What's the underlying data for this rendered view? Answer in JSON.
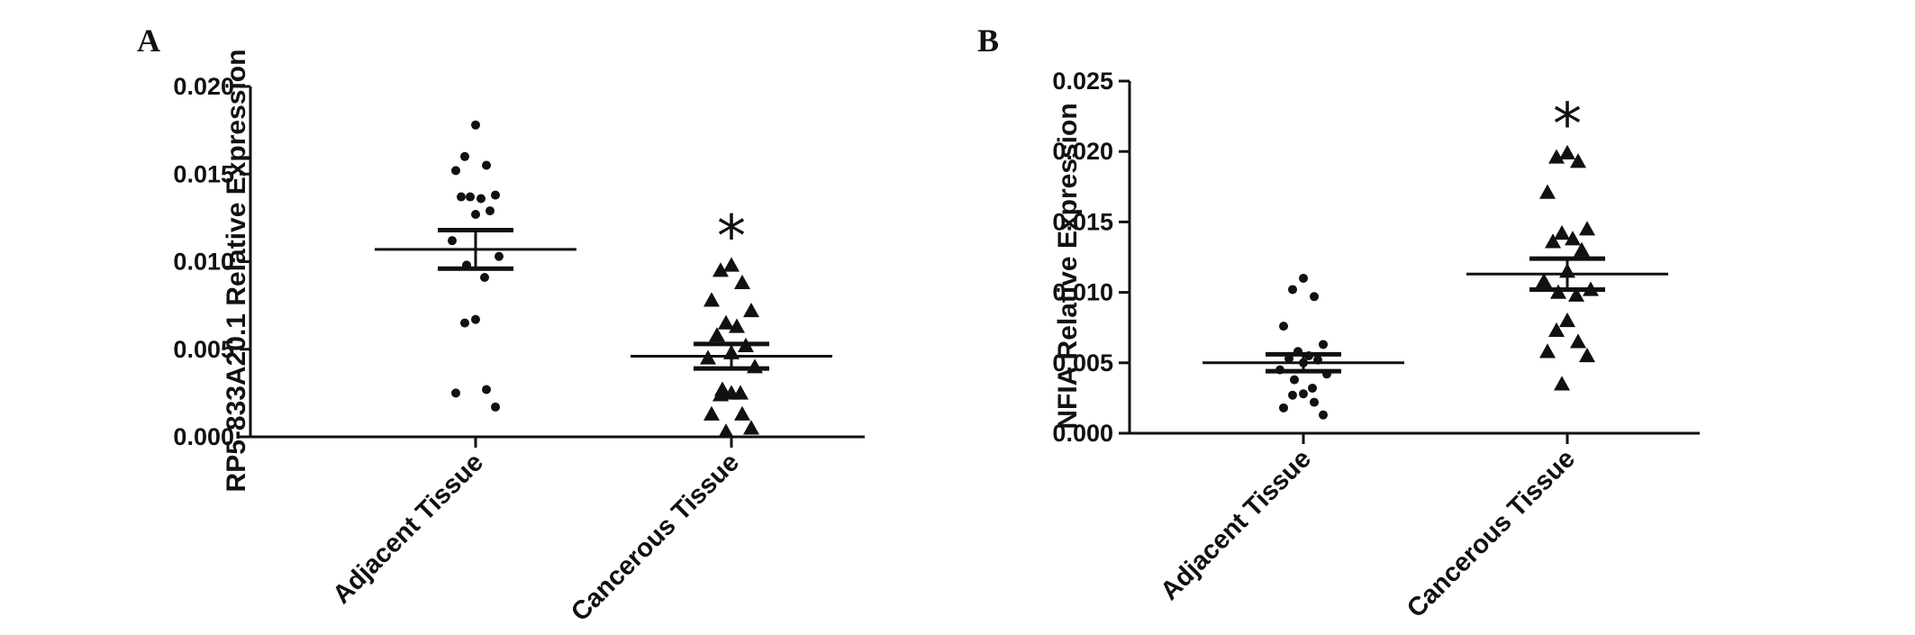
{
  "chart_data": [
    {
      "type": "scatter",
      "panel": "A",
      "ylabel": "RP5-833A20.1 Relative Expression",
      "xlabel": "",
      "ylim": [
        0,
        0.02
      ],
      "yticks": [
        "0.000",
        "0.005",
        "0.010",
        "0.015",
        "0.020"
      ],
      "categories": [
        "Adjacent Tissue",
        "Cancerous Tissue"
      ],
      "groups": [
        {
          "category": "Adjacent Tissue",
          "marker": "circle",
          "mean": 0.0107,
          "sem": 0.0011,
          "significance": "",
          "points": [
            0.0178,
            0.016,
            0.0155,
            0.0152,
            0.0138,
            0.0137,
            0.0136,
            0.0137,
            0.0129,
            0.0127,
            0.0112,
            0.0103,
            0.0098,
            0.0091,
            0.0067,
            0.0065,
            0.0027,
            0.0025,
            0.0017
          ]
        },
        {
          "category": "Cancerous Tissue",
          "marker": "triangle",
          "mean": 0.0046,
          "sem": 0.0007,
          "significance": "*",
          "points": [
            0.0098,
            0.0095,
            0.0088,
            0.0078,
            0.0072,
            0.0065,
            0.0063,
            0.0058,
            0.0052,
            0.0048,
            0.0045,
            0.004,
            0.0027,
            0.0025,
            0.0025,
            0.0024,
            0.0013,
            0.0013,
            0.0005,
            0.0003
          ]
        }
      ]
    },
    {
      "type": "scatter",
      "panel": "B",
      "ylabel": "NFIA Relative Expression",
      "xlabel": "",
      "ylim": [
        0,
        0.025
      ],
      "yticks": [
        "0.000",
        "0.005",
        "0.010",
        "0.015",
        "0.020",
        "0.025"
      ],
      "categories": [
        "Adjacent Tissue",
        "Cancerous Tissue"
      ],
      "groups": [
        {
          "category": "Adjacent Tissue",
          "marker": "circle",
          "mean": 0.005,
          "sem": 0.0006,
          "significance": "",
          "points": [
            0.011,
            0.0102,
            0.0097,
            0.0076,
            0.0063,
            0.0058,
            0.0055,
            0.0053,
            0.0052,
            0.005,
            0.0045,
            0.0042,
            0.0038,
            0.0032,
            0.0028,
            0.0027,
            0.0022,
            0.0018,
            0.0013
          ]
        },
        {
          "category": "Cancerous Tissue",
          "marker": "triangle",
          "mean": 0.0113,
          "sem": 0.0011,
          "significance": "*",
          "points": [
            0.0199,
            0.0196,
            0.0193,
            0.0171,
            0.0145,
            0.0142,
            0.0138,
            0.0136,
            0.013,
            0.0115,
            0.0108,
            0.0102,
            0.01,
            0.0098,
            0.008,
            0.0073,
            0.0065,
            0.0058,
            0.0055,
            0.0035
          ]
        }
      ]
    }
  ]
}
